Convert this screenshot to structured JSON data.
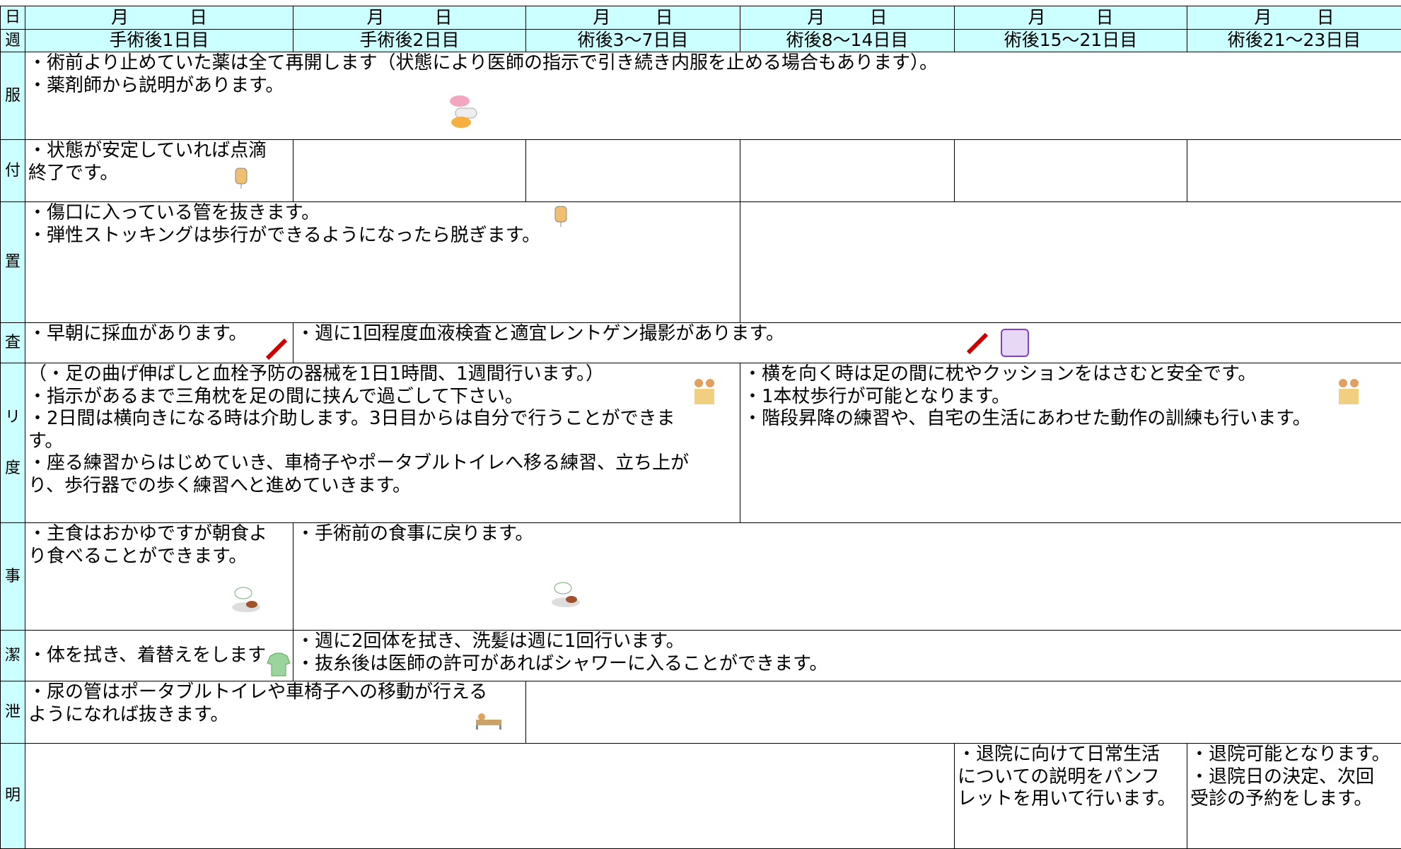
{
  "header": {
    "dates": [
      {
        "month": "月",
        "day": "日"
      },
      {
        "month": "月",
        "day": "日"
      },
      {
        "month": "月",
        "day": "日"
      },
      {
        "month": "月",
        "day": "日"
      },
      {
        "month": "月",
        "day": "日"
      },
      {
        "month": "月",
        "day": "日"
      }
    ],
    "days": [
      "手術後1日目",
      "手術後2日目",
      "術後3～7日目",
      "術後8～14日目",
      "術後15～21日目",
      "術後21～23日目"
    ]
  },
  "row_labels": [
    "日",
    "週",
    "服",
    "付",
    "置",
    "査",
    "リ",
    "度",
    "事",
    "潔",
    "泄",
    "明"
  ],
  "rows": {
    "medication": [
      [
        "・術前より止めていた薬は全て再開します（状態により医師の指示で引き続き内服を止める場合もあります）。",
        "・薬剤師から説明があります。"
      ]
    ],
    "drip": [
      [
        "・状態が安定していれば点滴",
        "終了です。"
      ]
    ],
    "procedure": [
      [
        "・傷口に入っている管を抜きます。",
        "・弾性ストッキングは歩行ができるようになったら脱ぎます。"
      ]
    ],
    "exam": [
      [
        "・早朝に採血があります。"
      ],
      [
        "・週に1回程度血液検査と適宜レントゲン撮影があります。"
      ]
    ],
    "rehab": [
      [
        "（・足の曲げ伸ばしと血栓予防の器械を1日1時間、1週間行います。）",
        "・指示があるまで三角枕を足の間に挟んで過ごして下さい。",
        "・2日間は横向きになる時は介助します。3日目からは自分で行うことができま",
        "す。",
        "・座る練習からはじめていき、車椅子やポータブルトイレへ移る練習、立ち上が",
        "り、歩行器での歩く練習へと進めていきます。"
      ],
      [
        "・横を向く時は足の間に枕やクッションをはさむと安全です。",
        "・1本杖歩行が可能となります。",
        "・階段昇降の練習や、自宅の生活にあわせた動作の訓練も行います。"
      ]
    ],
    "meal": [
      [
        "・主食はおかゆですが朝食よ",
        "り食べることができます。"
      ],
      [
        "・手術前の食事に戻ります。"
      ]
    ],
    "hygiene": [
      [
        "・体を拭き、着替えをします"
      ],
      [
        "・週に2回体を拭き、洗髪は週に1回行います。",
        "・抜糸後は医師の許可があればシャワーに入ることができます。"
      ]
    ],
    "excretion": [
      [
        "・尿の管はポータブルトイレや車椅子への移動が行える",
        "ようになれば抜きます。"
      ]
    ],
    "explanation": [
      [
        "・退院に向けて日常生活",
        "についての説明をパンフ",
        "レットを用いて行います。"
      ],
      [
        "・退院可能となります。",
        "・退院日の決定、次回",
        "受診の予約をします。"
      ]
    ]
  }
}
